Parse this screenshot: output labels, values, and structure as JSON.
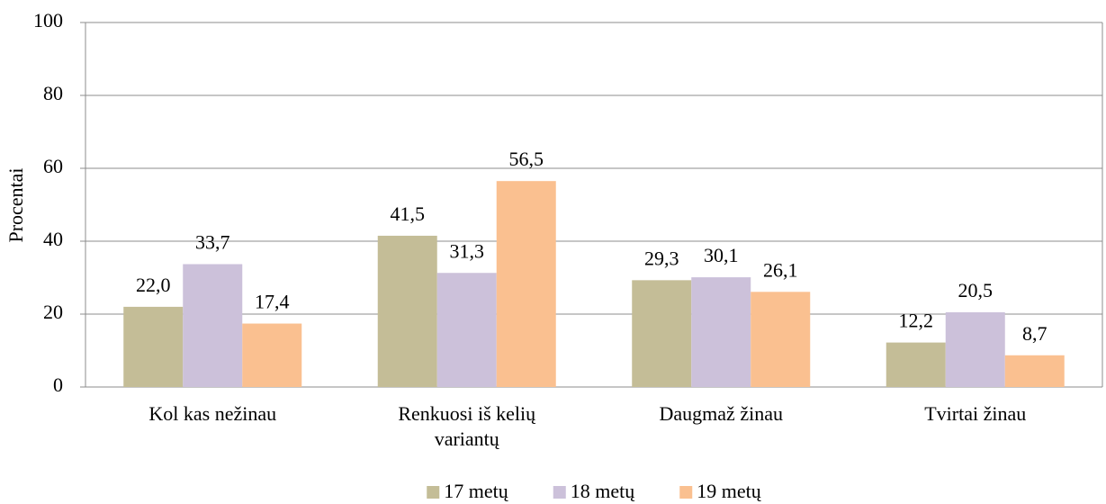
{
  "chart_data": {
    "type": "bar",
    "y_label": "Procentai",
    "categories": [
      "Kol kas nežinau",
      "Renkuosi iš kelių variantų",
      "Daugmaž žinau",
      "Tvirtai žinau"
    ],
    "series": [
      {
        "name": "17 metų",
        "color": "#c4bd97",
        "values": [
          22.0,
          41.5,
          29.3,
          12.2
        ],
        "value_labels": [
          "22,0",
          "41,5",
          "29,3",
          "12,2"
        ]
      },
      {
        "name": "18 metų",
        "color": "#ccc1da",
        "values": [
          33.7,
          31.3,
          30.1,
          20.5
        ],
        "value_labels": [
          "33,7",
          "31,3",
          "30,1",
          "20,5"
        ]
      },
      {
        "name": "19 metų",
        "color": "#fac090",
        "values": [
          17.4,
          56.5,
          26.1,
          8.7
        ],
        "value_labels": [
          "17,4",
          "56,5",
          "26,1",
          "8,7"
        ]
      }
    ],
    "ylim": [
      0,
      100
    ],
    "yticks": [
      0,
      20,
      40,
      60,
      80,
      100
    ],
    "grid": true,
    "legend": "bottom"
  }
}
